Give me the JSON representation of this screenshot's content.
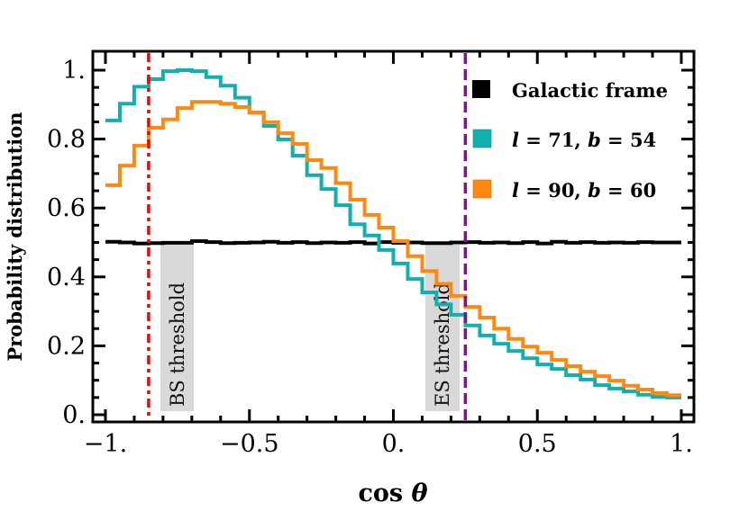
{
  "chart_data": {
    "type": "line",
    "style": "step-histogram",
    "title": "",
    "xlabel": "cos θ",
    "ylabel": "Probability distribution",
    "xlim": [
      -1,
      1
    ],
    "ylim": [
      0,
      1.05
    ],
    "x_ticks": [
      -1,
      -0.5,
      0,
      0.5,
      1
    ],
    "x_tick_labels": [
      "−1.",
      "−0.5",
      "0.",
      "0.5",
      "1."
    ],
    "y_ticks": [
      0,
      0.2,
      0.4,
      0.6,
      0.8,
      1.0
    ],
    "y_tick_labels": [
      "0.",
      "0.2",
      "0.4",
      "0.6",
      "0.8",
      "1."
    ],
    "grid": false,
    "legend_position": "upper right",
    "bin_edges_start": -1,
    "bin_width": 0.05,
    "series": [
      {
        "name": "Galactic frame",
        "color": "#000000",
        "values": [
          0.502,
          0.5,
          0.497,
          0.498,
          0.499,
          0.499,
          0.504,
          0.501,
          0.498,
          0.499,
          0.5,
          0.502,
          0.499,
          0.501,
          0.498,
          0.5,
          0.499,
          0.501,
          0.497,
          0.501,
          0.499,
          0.5,
          0.498,
          0.498,
          0.5,
          0.501,
          0.499,
          0.5,
          0.498,
          0.501,
          0.497,
          0.502,
          0.499,
          0.501,
          0.499,
          0.5,
          0.499,
          0.501,
          0.5,
          0.5
        ]
      },
      {
        "name": "l = 71,  b = 54",
        "color": "#12AFAF",
        "values": [
          0.854,
          0.903,
          0.952,
          0.974,
          0.997,
          1.0,
          0.997,
          0.98,
          0.955,
          0.92,
          0.877,
          0.838,
          0.799,
          0.752,
          0.695,
          0.655,
          0.608,
          0.553,
          0.52,
          0.478,
          0.439,
          0.394,
          0.355,
          0.32,
          0.29,
          0.259,
          0.23,
          0.206,
          0.185,
          0.164,
          0.146,
          0.133,
          0.115,
          0.102,
          0.086,
          0.076,
          0.068,
          0.058,
          0.052,
          0.05
        ]
      },
      {
        "name": "l = 90,  b = 60",
        "color": "#FF8811",
        "values": [
          0.666,
          0.723,
          0.781,
          0.833,
          0.857,
          0.89,
          0.908,
          0.908,
          0.903,
          0.893,
          0.877,
          0.849,
          0.817,
          0.786,
          0.739,
          0.716,
          0.672,
          0.624,
          0.58,
          0.543,
          0.504,
          0.46,
          0.417,
          0.38,
          0.345,
          0.313,
          0.282,
          0.25,
          0.22,
          0.198,
          0.18,
          0.159,
          0.141,
          0.125,
          0.112,
          0.099,
          0.084,
          0.073,
          0.063,
          0.057
        ]
      }
    ],
    "annotations": [
      {
        "label": "BS threshold",
        "x": -0.85,
        "line_color": "#FF0000",
        "line_style": "dot-dash"
      },
      {
        "label": "ES threshold",
        "x": 0.25,
        "line_color": "#8B0A9A",
        "line_style": "dashed"
      }
    ]
  },
  "legend": {
    "items": [
      {
        "label": "Galactic frame",
        "color": "#000000"
      },
      {
        "label_l": "l",
        "eq1": " = 71,  ",
        "label_b": "b",
        "eq2": " = 54",
        "color": "#12AFAF"
      },
      {
        "label_l": "l",
        "eq1": " = 90,  ",
        "label_b": "b",
        "eq2": " = 60",
        "color": "#FF8811"
      }
    ]
  },
  "thresholds": {
    "bs": {
      "label": "BS threshold"
    },
    "es": {
      "label": "ES threshold"
    }
  },
  "axes": {
    "xlabel_main": "cos ",
    "xlabel_theta": "θ",
    "ylabel": "Probability distribution"
  }
}
